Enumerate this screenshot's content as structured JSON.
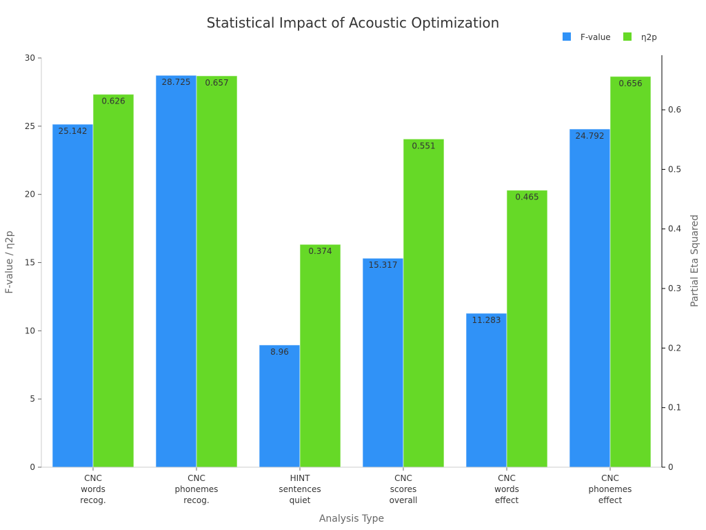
{
  "chart_data": {
    "type": "bar",
    "title": "Statistical Impact of Acoustic Optimization",
    "xlabel": "Analysis Type",
    "ylabel": "F-value / η2p",
    "ylabel_right": "Partial Eta Squared",
    "categories": [
      [
        "CNC",
        "words",
        "recog."
      ],
      [
        "CNC",
        "phonemes",
        "recog."
      ],
      [
        "HINT",
        "sentences",
        "quiet"
      ],
      [
        "CNC",
        "scores",
        "overall"
      ],
      [
        "CNC",
        "words",
        "effect"
      ],
      [
        "CNC",
        "phonemes",
        "effect"
      ]
    ],
    "series": [
      {
        "name": "F-value",
        "axis": "left",
        "color": "#3092f7",
        "values": [
          25.142,
          28.725,
          8.96,
          15.317,
          11.283,
          24.792
        ]
      },
      {
        "name": "η2p",
        "axis": "right",
        "color": "#66d927",
        "values": [
          0.626,
          0.657,
          0.374,
          0.551,
          0.465,
          0.656
        ]
      }
    ],
    "ylim": [
      0,
      30
    ],
    "yticks": [
      0,
      5,
      10,
      15,
      20,
      25,
      30
    ],
    "ylim_right": [
      0,
      0.687
    ],
    "yticks_right": [
      0,
      0.1,
      0.2,
      0.3,
      0.4,
      0.5,
      0.6
    ],
    "legend": "top-right",
    "grid": false
  }
}
